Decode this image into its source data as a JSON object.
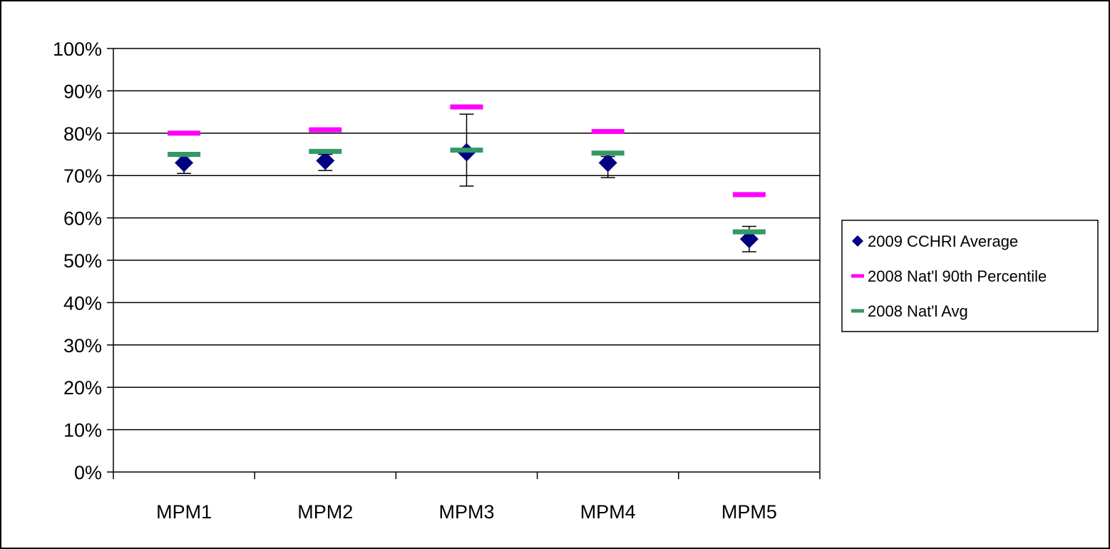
{
  "chart_data": {
    "type": "scatter",
    "title": "",
    "xlabel": "",
    "ylabel": "",
    "categories": [
      "MPM1",
      "MPM2",
      "MPM3",
      "MPM4",
      "MPM5"
    ],
    "ylim": [
      0,
      100
    ],
    "yticks": [
      "0%",
      "10%",
      "20%",
      "30%",
      "40%",
      "50%",
      "60%",
      "70%",
      "80%",
      "90%",
      "100%"
    ],
    "ytick_values": [
      0,
      10,
      20,
      30,
      40,
      50,
      60,
      70,
      80,
      90,
      100
    ],
    "grid": true,
    "legend_position": "right",
    "series": [
      {
        "name": "2009 CCHRI Average",
        "marker": "diamond",
        "color": "#000080",
        "values": [
          73,
          73.5,
          75.5,
          73,
          55
        ],
        "error_low": [
          70.5,
          71.2,
          67.5,
          69.5,
          52
        ],
        "error_high": [
          74.5,
          75,
          84.5,
          74.5,
          58
        ]
      },
      {
        "name": "2008 Nat'l 90th Percentile",
        "marker": "dash",
        "color": "#ff00ff",
        "values": [
          80,
          80.8,
          86.2,
          80.4,
          65.5
        ]
      },
      {
        "name": "2008 Nat'l Avg",
        "marker": "dash",
        "color": "#339966",
        "values": [
          75,
          75.7,
          76,
          75.3,
          56.7
        ]
      }
    ]
  }
}
